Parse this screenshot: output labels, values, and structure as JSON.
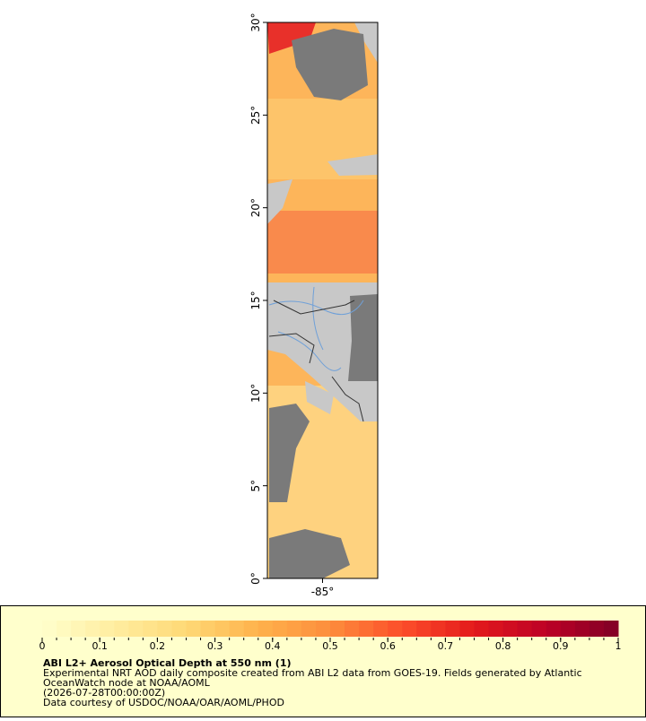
{
  "map": {
    "lat_range": [
      0,
      30
    ],
    "lat_ticks": [
      {
        "value": 0,
        "label": "0°"
      },
      {
        "value": 5,
        "label": "5°"
      },
      {
        "value": 10,
        "label": "10°"
      },
      {
        "value": 15,
        "label": "15°"
      },
      {
        "value": 20,
        "label": "20°"
      },
      {
        "value": 25,
        "label": "25°"
      },
      {
        "value": 30,
        "label": "30°"
      }
    ],
    "lon_range": [
      -88,
      -82
    ],
    "lon_ticks": [
      {
        "value": -85,
        "label": "-85°"
      }
    ]
  },
  "colorbar": {
    "range": [
      0,
      1
    ],
    "ticks": [
      0,
      0.1,
      0.2,
      0.3,
      0.4,
      0.5,
      0.6,
      0.7,
      0.8,
      0.9,
      1
    ],
    "minor_step": 0.025,
    "colors": [
      "#ffffcc",
      "#ffeda0",
      "#fed976",
      "#feb24c",
      "#fd8d3c",
      "#fc4e2a",
      "#e31a1c",
      "#bd0026",
      "#800026"
    ]
  },
  "caption": {
    "title": "ABI L2+ Aerosol Optical Depth at 550 nm (1)",
    "lines": [
      "Experimental NRT AOD daily composite created from ABI L2 data from GOES-19. Fields generated by Atlantic",
      "OceanWatch node at NOAA/AOML",
      "(2026-07-28T00:00:00Z)",
      "Data courtesy of USDOC/NOAA/OAR/AOML/PHOD"
    ]
  }
}
